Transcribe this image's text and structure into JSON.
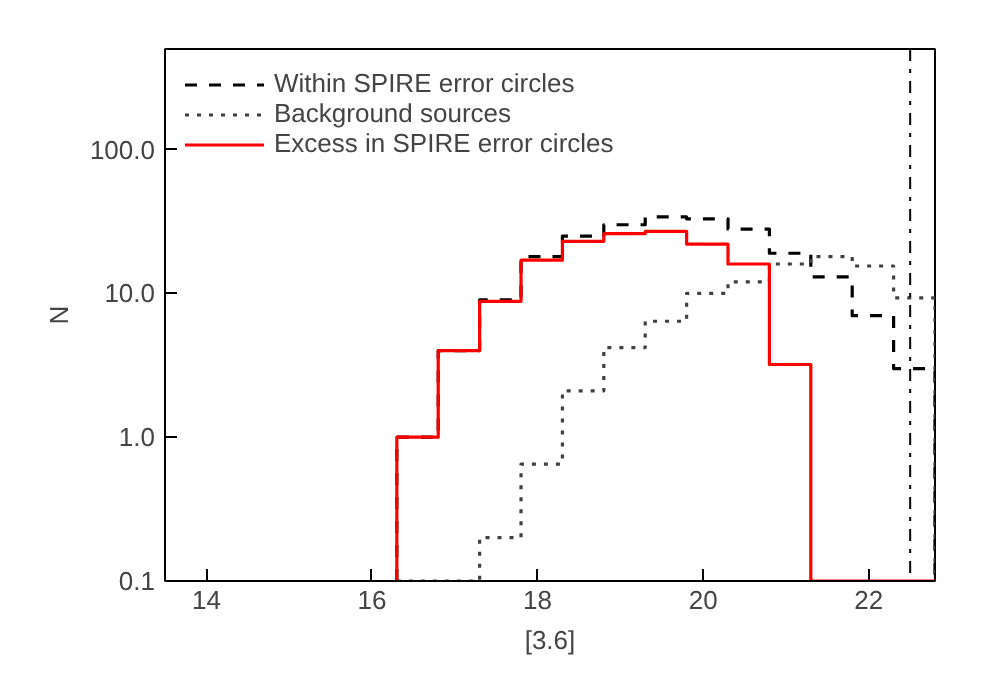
{
  "chart_data": {
    "type": "histogram",
    "xlabel": "[3.6]",
    "ylabel": "N",
    "bins": [
      16.3,
      16.8,
      17.3,
      17.8,
      18.3,
      18.8,
      19.3,
      19.8,
      20.3,
      20.8,
      21.3,
      21.8,
      22.3,
      22.8
    ],
    "series": [
      {
        "name": "Within SPIRE error circles",
        "color": "#000000",
        "line_style": "dashed",
        "values": [
          1.0,
          4.0,
          9.0,
          18,
          25,
          30,
          34,
          33,
          28,
          19,
          13,
          7.0,
          3.0
        ]
      },
      {
        "name": "Background sources",
        "color": "#404040",
        "line_style": "dotted",
        "values": [
          null,
          null,
          0.2,
          0.65,
          2.1,
          4.2,
          6.4,
          10,
          12,
          16,
          18,
          15.5,
          9.3
        ]
      },
      {
        "name": "Excess in SPIRE error circles",
        "color": "#ff0000",
        "line_style": "solid",
        "values": [
          1.0,
          4.0,
          8.8,
          17,
          23,
          26,
          27,
          22,
          16,
          3.2,
          null,
          null,
          null
        ]
      }
    ],
    "log": "y",
    "xlim": [
      13.5,
      22.8
    ],
    "ylim": [
      0.1,
      500
    ],
    "xticks": [
      14,
      16,
      18,
      20,
      22
    ],
    "yticks": [
      {
        "value": 0.1,
        "label": "0.1"
      },
      {
        "value": 1,
        "label": "1.0"
      },
      {
        "value": 10,
        "label": "10.0"
      },
      {
        "value": 100,
        "label": "100.0"
      }
    ],
    "ref_lines": [
      {
        "axis": "x",
        "value": 22.5,
        "line_style": "dashdot",
        "color": "#000000"
      }
    ],
    "legend": "top left",
    "grid": false
  }
}
